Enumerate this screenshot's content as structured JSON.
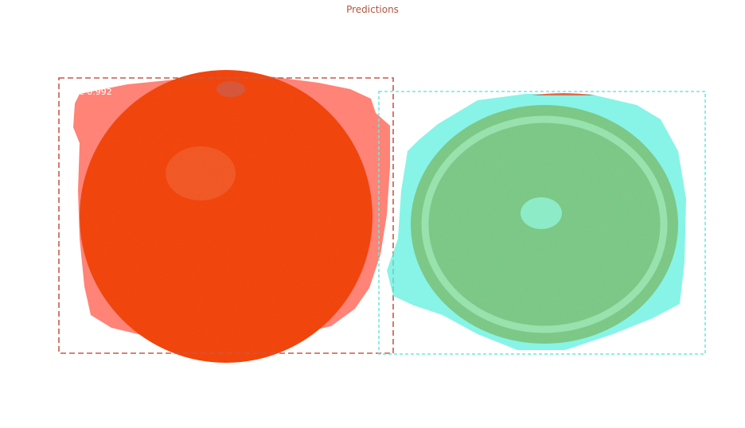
{
  "title": "Predictions",
  "title_color": "#b5543f",
  "detections": [
    {
      "label": "ge 0.992",
      "box_color": "#c9584a",
      "mask_color": "#ff5a4a",
      "fruit_color": "#f5470c"
    },
    {
      "label": "",
      "box_color": "#6fe9dd",
      "mask_color": "#5ff0df",
      "fruit_color": "#7fcc8a"
    }
  ]
}
